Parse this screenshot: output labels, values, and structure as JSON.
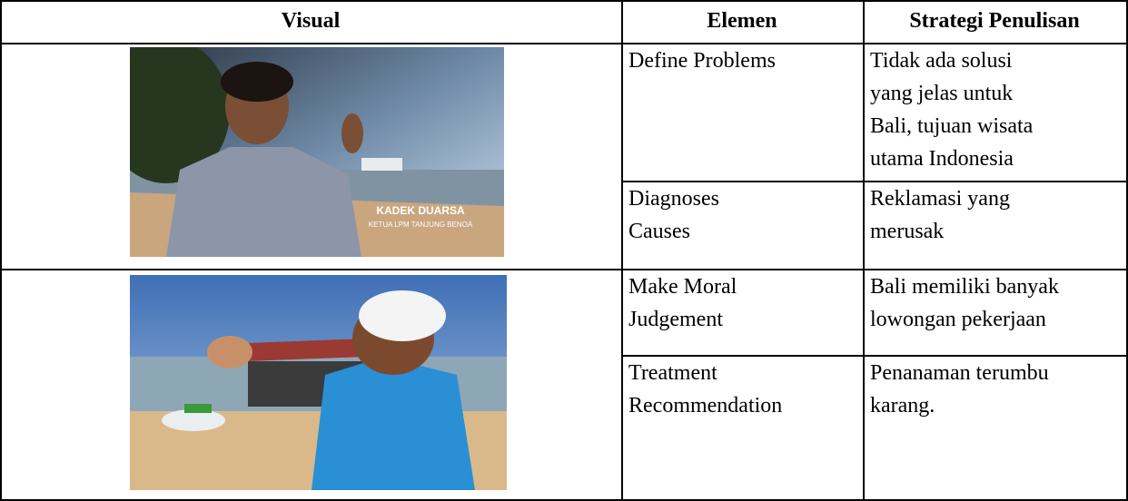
{
  "table": {
    "headers": [
      "Visual",
      "Elemen",
      "Strategi Penulisan"
    ],
    "rows": [
      {
        "image_caption": {
          "name": "KADEK DUARSA",
          "role": "KETUA LPM TANJUNG BENOA"
        },
        "items": [
          {
            "element": [
              "Define Problems"
            ],
            "strategy": [
              "Tidak ada solusi",
              "yang jelas untuk",
              "Bali, tujuan wisata",
              "utama Indonesia"
            ]
          },
          {
            "element": [
              "Diagnoses",
              "Causes"
            ],
            "strategy": [
              "Reklamasi yang",
              "merusak"
            ]
          }
        ]
      },
      {
        "items": [
          {
            "element": [
              "Make Moral",
              "Judgement"
            ],
            "strategy": [
              "Bali memiliki banyak",
              "lowongan pekerjaan"
            ]
          },
          {
            "element": [
              "Treatment",
              "Recommendation"
            ],
            "strategy": [
              "Penanaman terumbu",
              "karang."
            ]
          }
        ]
      }
    ]
  }
}
